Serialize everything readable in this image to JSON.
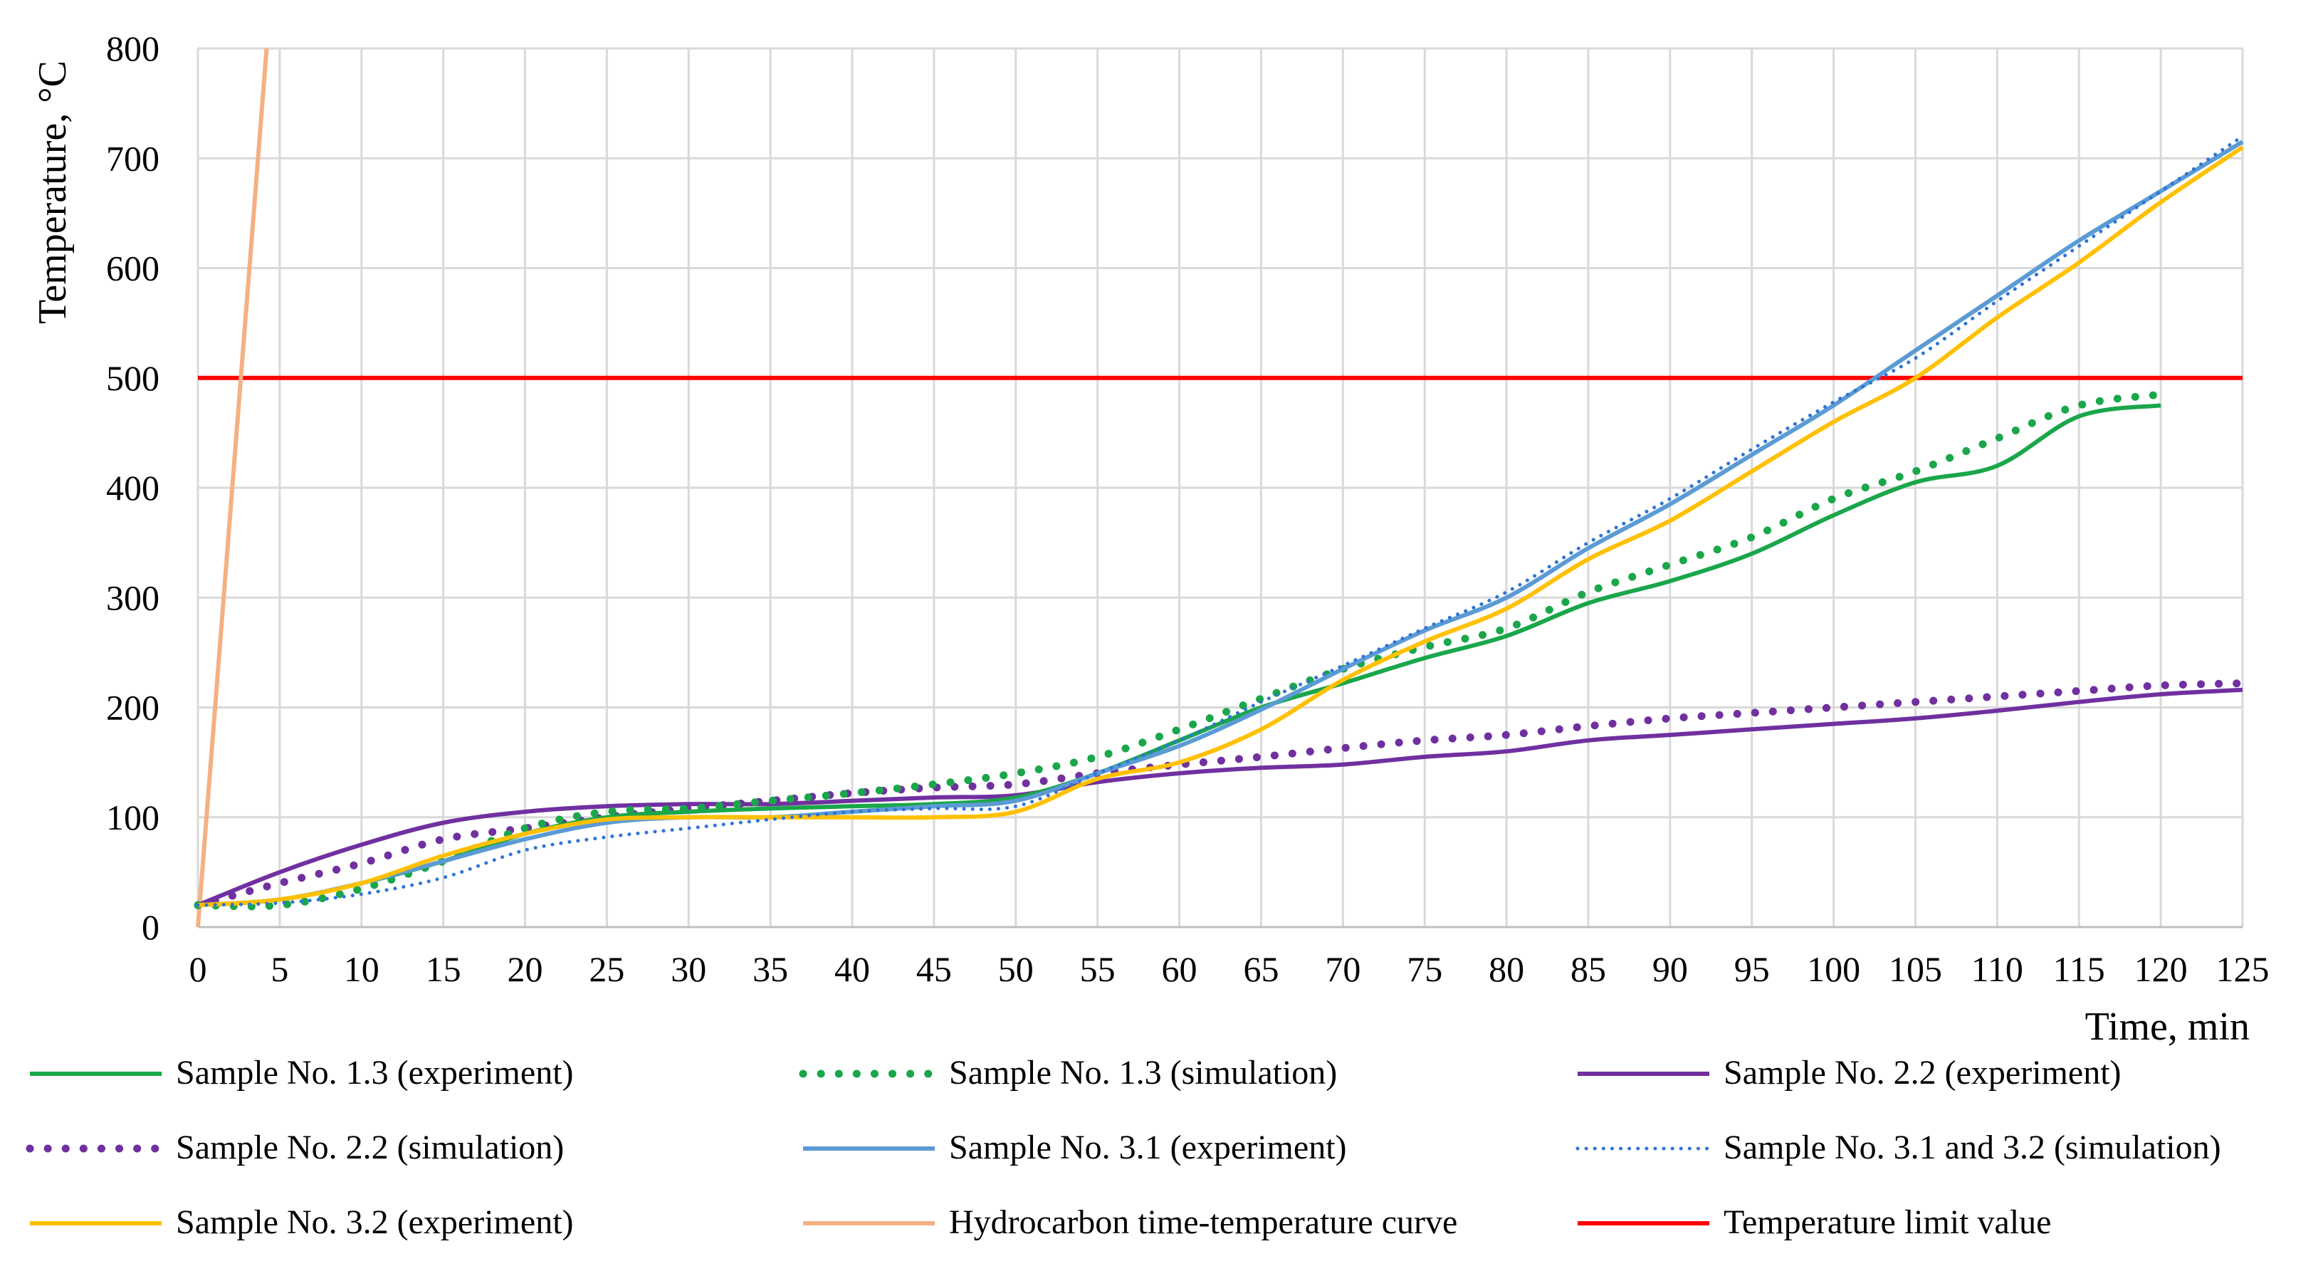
{
  "chart_data": {
    "type": "line",
    "title": "",
    "xlabel": "Time, min",
    "ylabel": "Temperature, °C",
    "xlim": [
      0,
      125
    ],
    "ylim": [
      0,
      800
    ],
    "xticks": [
      0,
      5,
      10,
      15,
      20,
      25,
      30,
      35,
      40,
      45,
      50,
      55,
      60,
      65,
      70,
      75,
      80,
      85,
      90,
      95,
      100,
      105,
      110,
      115,
      120,
      125
    ],
    "yticks": [
      0,
      100,
      200,
      300,
      400,
      500,
      600,
      700,
      800
    ],
    "grid": true,
    "legend_position": "bottom",
    "series": [
      {
        "name": "Sample No. 1.3 (experiment)",
        "color": "#1aa64a",
        "style": "solid",
        "x": [
          0,
          5,
          10,
          15,
          20,
          25,
          30,
          35,
          40,
          45,
          50,
          55,
          60,
          65,
          70,
          75,
          80,
          85,
          90,
          95,
          100,
          105,
          110,
          115,
          120
        ],
        "y": [
          20,
          25,
          40,
          60,
          85,
          100,
          105,
          108,
          110,
          112,
          118,
          140,
          170,
          200,
          222,
          245,
          265,
          295,
          315,
          340,
          375,
          405,
          420,
          465,
          475
        ]
      },
      {
        "name": "Sample No. 1.3 (simulation)",
        "color": "#1aa64a",
        "style": "dotted-bold",
        "x": [
          0,
          5,
          10,
          15,
          20,
          25,
          30,
          35,
          40,
          45,
          50,
          55,
          60,
          65,
          70,
          75,
          80,
          85,
          90,
          95,
          100,
          105,
          110,
          115,
          120
        ],
        "y": [
          20,
          20,
          35,
          60,
          90,
          105,
          108,
          115,
          122,
          130,
          140,
          155,
          180,
          208,
          235,
          255,
          272,
          305,
          330,
          355,
          390,
          415,
          445,
          475,
          485
        ]
      },
      {
        "name": "Sample No. 2.2 (experiment)",
        "color": "#7030a0",
        "style": "solid",
        "x": [
          0,
          5,
          10,
          15,
          20,
          25,
          30,
          35,
          40,
          45,
          50,
          55,
          60,
          65,
          70,
          75,
          80,
          85,
          90,
          95,
          100,
          105,
          110,
          115,
          120,
          125
        ],
        "y": [
          20,
          50,
          75,
          95,
          105,
          110,
          112,
          112,
          115,
          118,
          120,
          132,
          140,
          145,
          148,
          155,
          160,
          170,
          175,
          180,
          185,
          190,
          197,
          205,
          212,
          216
        ]
      },
      {
        "name": "Sample No. 2.2 (simulation)",
        "color": "#7030a0",
        "style": "dotted-bold",
        "x": [
          0,
          5,
          10,
          15,
          20,
          25,
          30,
          35,
          40,
          45,
          50,
          55,
          60,
          65,
          70,
          75,
          80,
          85,
          90,
          95,
          100,
          105,
          110,
          115,
          120,
          125
        ],
        "y": [
          20,
          40,
          58,
          80,
          90,
          100,
          108,
          115,
          122,
          127,
          130,
          140,
          148,
          155,
          163,
          170,
          175,
          183,
          190,
          195,
          200,
          205,
          210,
          215,
          220,
          222
        ]
      },
      {
        "name": "Sample No. 3.1 (experiment)",
        "color": "#5b9bd5",
        "style": "solid",
        "x": [
          0,
          5,
          10,
          15,
          20,
          25,
          30,
          35,
          40,
          45,
          50,
          55,
          60,
          65,
          70,
          75,
          80,
          85,
          90,
          95,
          100,
          105,
          110,
          115,
          120,
          125
        ],
        "y": [
          20,
          25,
          40,
          60,
          80,
          95,
          100,
          100,
          105,
          110,
          115,
          140,
          165,
          198,
          235,
          270,
          300,
          345,
          385,
          430,
          475,
          525,
          575,
          625,
          670,
          715
        ]
      },
      {
        "name": "Sample No. 3.1 and 3.2 (simulation)",
        "color": "#2e75d6",
        "style": "dotted-fine",
        "x": [
          0,
          5,
          10,
          15,
          20,
          25,
          30,
          35,
          40,
          45,
          50,
          55,
          60,
          65,
          70,
          75,
          80,
          85,
          90,
          95,
          100,
          105,
          110,
          115,
          120,
          125
        ],
        "y": [
          20,
          22,
          30,
          45,
          70,
          82,
          90,
          98,
          105,
          108,
          110,
          140,
          170,
          205,
          238,
          272,
          305,
          350,
          390,
          435,
          478,
          518,
          570,
          620,
          670,
          720
        ]
      },
      {
        "name": "Sample No. 3.2 (experiment)",
        "color": "#ffc000",
        "style": "solid",
        "x": [
          0,
          5,
          10,
          15,
          20,
          25,
          30,
          35,
          40,
          45,
          50,
          55,
          60,
          65,
          70,
          75,
          80,
          85,
          90,
          95,
          100,
          105,
          110,
          115,
          120,
          125
        ],
        "y": [
          20,
          25,
          40,
          65,
          85,
          98,
          100,
          100,
          100,
          100,
          105,
          135,
          150,
          180,
          225,
          260,
          290,
          335,
          370,
          415,
          460,
          500,
          555,
          605,
          660,
          710
        ]
      },
      {
        "name": "Hydrocarbon time-temperature curve",
        "color": "#f4b183",
        "style": "solid",
        "x": [
          0,
          4.2
        ],
        "y": [
          0,
          800
        ]
      },
      {
        "name": "Temperature limit value",
        "color": "#ff0000",
        "style": "solid",
        "x": [
          0,
          125
        ],
        "y": [
          500,
          500
        ]
      }
    ]
  }
}
